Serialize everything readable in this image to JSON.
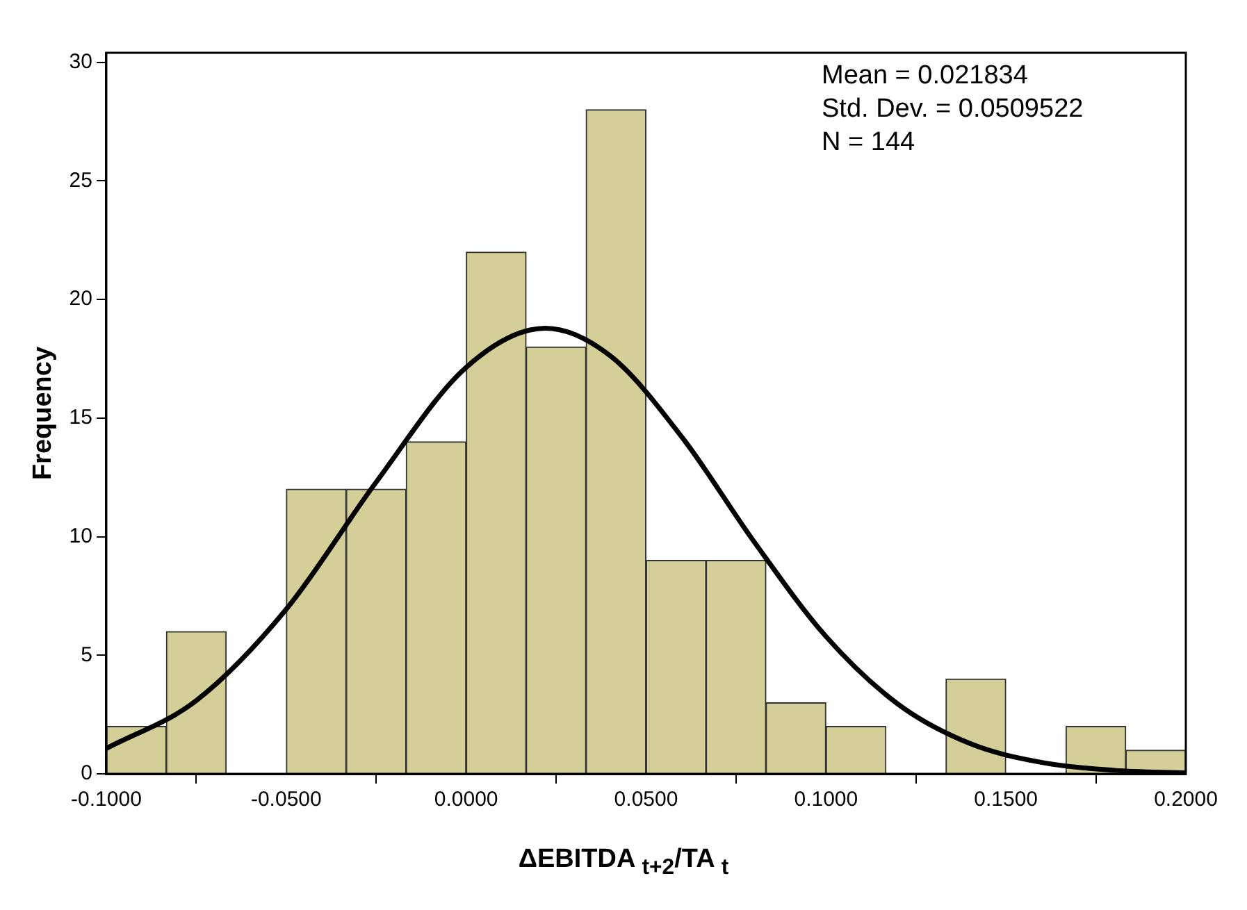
{
  "chart_data": {
    "type": "histogram",
    "xlabel": "ΔEBITDA $_{t+2}$/TA $_{t}$",
    "ylabel": "Frequency",
    "bins": [
      -0.1,
      -0.0833,
      -0.0667,
      -0.05,
      -0.0333,
      -0.0167,
      0,
      0.0167,
      0.0333,
      0.05,
      0.0667,
      0.0833,
      0.1,
      0.1167,
      0.1333,
      0.15,
      0.1667,
      0.1833,
      0.2
    ],
    "values": [
      2,
      6,
      0,
      12,
      12,
      14,
      22,
      18,
      28,
      9,
      9,
      3,
      2,
      0,
      4,
      0,
      2,
      1
    ],
    "color": "#d4cf98",
    "series": [
      {
        "type": "line",
        "color": "#000000",
        "x": [
          -0.1,
          -0.075,
          -0.05,
          -0.025,
          0,
          0.022,
          0.04,
          0.06,
          0.08,
          0.1,
          0.12,
          0.14,
          0.16,
          0.18,
          0.2
        ],
        "values": [
          1.07,
          3.09,
          6.94,
          12.3,
          17.14,
          18.79,
          17.63,
          14.19,
          9.79,
          5.79,
          2.94,
          1.28,
          0.48,
          0.15,
          0.04
        ]
      }
    ],
    "xlim": [
      -0.1,
      0.2
    ],
    "xticks": [
      {
        "value": -0.1,
        "label": "-0.1000"
      },
      {
        "value": -0.05,
        "label": "-0.0500"
      },
      {
        "value": 0,
        "label": "0.0000"
      },
      {
        "value": 0.05,
        "label": "0.0500"
      },
      {
        "value": 0.1,
        "label": "0.1000"
      },
      {
        "value": 0.15,
        "label": "0.1500"
      },
      {
        "value": 0.2,
        "label": "0.2000"
      }
    ],
    "ylim": [
      0,
      30.4
    ],
    "yticks": [
      0,
      5,
      10,
      15,
      20,
      25,
      30
    ],
    "annotations": [
      "Mean = 0.021834",
      "Std. Dev. = 0.0509522",
      "N = 144"
    ],
    "legend": false,
    "grid": false
  }
}
